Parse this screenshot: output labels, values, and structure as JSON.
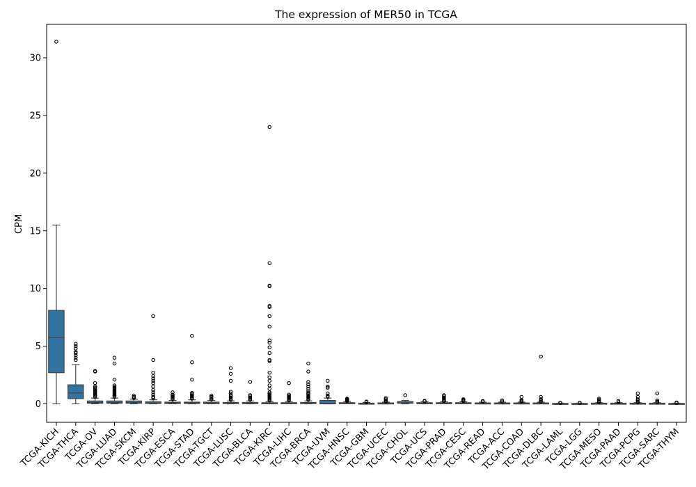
{
  "chart_data": {
    "type": "box",
    "title": "The expression of MER50 in TCGA",
    "xlabel": "",
    "ylabel": "CPM",
    "ylim": [
      -1.6,
      32.9
    ],
    "yticks": [
      0,
      5,
      10,
      15,
      20,
      25,
      30
    ],
    "box_color": "#3274a1",
    "categories": [
      "TCGA-KICH",
      "TCGA-THCA",
      "TCGA-OV",
      "TCGA-LUAD",
      "TCGA-SKCM",
      "TCGA-KIRP",
      "TCGA-ESCA",
      "TCGA-STAD",
      "TCGA-TGCT",
      "TCGA-LUSC",
      "TCGA-BLCA",
      "TCGA-KIRC",
      "TCGA-LIHC",
      "TCGA-BRCA",
      "TCGA-UVM",
      "TCGA-HNSC",
      "TCGA-GBM",
      "TCGA-UCEC",
      "TCGA-CHOL",
      "TCGA-UCS",
      "TCGA-PRAD",
      "TCGA-CESC",
      "TCGA-READ",
      "TCGA-ACC",
      "TCGA-COAD",
      "TCGA-DLBC",
      "TCGA-LAML",
      "TCGA-LGG",
      "TCGA-MESO",
      "TCGA-PAAD",
      "TCGA-PCPG",
      "TCGA-SARC",
      "TCGA-THYM"
    ],
    "boxes": [
      {
        "q1": 2.7,
        "median": 5.75,
        "q3": 8.1,
        "whisker_low": 0.0,
        "whisker_high": 15.5,
        "outliers": [
          31.4
        ]
      },
      {
        "q1": 0.45,
        "median": 0.95,
        "q3": 1.65,
        "whisker_low": 0.0,
        "whisker_high": 3.4,
        "outliers": [
          3.8,
          4.0,
          4.2,
          4.4,
          4.5,
          4.8,
          5.0,
          5.2
        ]
      },
      {
        "q1": 0.05,
        "median": 0.12,
        "q3": 0.25,
        "whisker_low": 0.0,
        "whisker_high": 0.5,
        "outliers": [
          0.6,
          0.7,
          0.8,
          0.9,
          1.0,
          1.1,
          1.2,
          1.3,
          1.4,
          1.5,
          1.8,
          2.8,
          2.85
        ]
      },
      {
        "q1": 0.05,
        "median": 0.12,
        "q3": 0.25,
        "whisker_low": 0.0,
        "whisker_high": 0.5,
        "outliers": [
          0.6,
          0.7,
          0.8,
          0.9,
          1.0,
          1.1,
          1.2,
          1.3,
          1.4,
          1.5,
          1.6,
          2.1,
          3.5,
          4.0
        ]
      },
      {
        "q1": 0.05,
        "median": 0.12,
        "q3": 0.25,
        "whisker_low": 0.0,
        "whisker_high": 0.4,
        "outliers": [
          0.5,
          0.6,
          0.7
        ]
      },
      {
        "q1": 0.03,
        "median": 0.08,
        "q3": 0.18,
        "whisker_low": 0.0,
        "whisker_high": 0.35,
        "outliers": [
          0.5,
          0.6,
          0.8,
          1.0,
          1.2,
          1.5,
          1.8,
          2.0,
          2.2,
          2.4,
          2.7,
          3.8,
          7.6
        ]
      },
      {
        "q1": 0.03,
        "median": 0.08,
        "q3": 0.15,
        "whisker_low": 0.0,
        "whisker_high": 0.3,
        "outliers": [
          0.4,
          0.5,
          0.6,
          0.7,
          0.8,
          1.0
        ]
      },
      {
        "q1": 0.03,
        "median": 0.08,
        "q3": 0.15,
        "whisker_low": 0.0,
        "whisker_high": 0.35,
        "outliers": [
          0.45,
          0.55,
          0.65,
          0.75,
          0.85,
          0.95,
          2.1,
          3.6,
          5.9
        ]
      },
      {
        "q1": 0.02,
        "median": 0.06,
        "q3": 0.15,
        "whisker_low": 0.0,
        "whisker_high": 0.3,
        "outliers": [
          0.4,
          0.5,
          0.6,
          0.7
        ]
      },
      {
        "q1": 0.02,
        "median": 0.05,
        "q3": 0.12,
        "whisker_low": 0.0,
        "whisker_high": 0.25,
        "outliers": [
          0.35,
          0.45,
          0.55,
          0.65,
          0.75,
          0.9,
          1.05,
          2.0,
          2.6,
          3.1
        ]
      },
      {
        "q1": 0.02,
        "median": 0.05,
        "q3": 0.12,
        "whisker_low": 0.0,
        "whisker_high": 0.25,
        "outliers": [
          0.35,
          0.45,
          0.55,
          0.65,
          0.75,
          1.9
        ]
      },
      {
        "q1": 0.02,
        "median": 0.05,
        "q3": 0.1,
        "whisker_low": 0.0,
        "whisker_high": 0.2,
        "outliers": [
          0.3,
          0.4,
          0.5,
          0.6,
          0.7,
          0.8,
          0.9,
          1.0,
          1.3,
          1.6,
          2.0,
          2.3,
          2.7,
          3.7,
          3.8,
          4.4,
          4.9,
          5.3,
          5.5,
          6.7,
          7.6,
          8.4,
          8.5,
          10.2,
          10.25,
          12.2,
          24.0
        ]
      },
      {
        "q1": 0.02,
        "median": 0.05,
        "q3": 0.1,
        "whisker_low": 0.0,
        "whisker_high": 0.2,
        "outliers": [
          0.3,
          0.4,
          0.5,
          0.6,
          0.7,
          0.8,
          1.8
        ]
      },
      {
        "q1": 0.02,
        "median": 0.05,
        "q3": 0.12,
        "whisker_low": 0.0,
        "whisker_high": 0.25,
        "outliers": [
          0.35,
          0.45,
          0.55,
          0.65,
          0.75,
          0.85,
          0.95,
          1.1,
          1.3,
          1.5,
          1.7,
          1.9,
          2.8,
          3.5
        ]
      },
      {
        "q1": 0.0,
        "median": 0.05,
        "q3": 0.3,
        "whisker_low": 0.0,
        "whisker_high": 0.5,
        "outliers": [
          0.6,
          0.7,
          0.9,
          1.4,
          1.5,
          2.0
        ]
      },
      {
        "q1": 0.02,
        "median": 0.05,
        "q3": 0.1,
        "whisker_low": 0.0,
        "whisker_high": 0.2,
        "outliers": [
          0.25,
          0.3,
          0.35,
          0.4,
          0.45
        ]
      },
      {
        "q1": 0.01,
        "median": 0.03,
        "q3": 0.06,
        "whisker_low": 0.0,
        "whisker_high": 0.12,
        "outliers": [
          0.15,
          0.2
        ]
      },
      {
        "q1": 0.01,
        "median": 0.04,
        "q3": 0.08,
        "whisker_low": 0.0,
        "whisker_high": 0.15,
        "outliers": [
          0.2,
          0.3,
          0.4,
          0.5
        ]
      },
      {
        "q1": 0.05,
        "median": 0.1,
        "q3": 0.2,
        "whisker_low": 0.0,
        "whisker_high": 0.3,
        "outliers": [
          0.75
        ]
      },
      {
        "q1": 0.02,
        "median": 0.05,
        "q3": 0.1,
        "whisker_low": 0.0,
        "whisker_high": 0.18,
        "outliers": [
          0.22,
          0.26
        ]
      },
      {
        "q1": 0.02,
        "median": 0.05,
        "q3": 0.1,
        "whisker_low": 0.0,
        "whisker_high": 0.18,
        "outliers": [
          0.25,
          0.35,
          0.45,
          0.55,
          0.65,
          0.75
        ]
      },
      {
        "q1": 0.02,
        "median": 0.05,
        "q3": 0.1,
        "whisker_low": 0.0,
        "whisker_high": 0.18,
        "outliers": [
          0.25,
          0.3,
          0.35,
          0.4
        ]
      },
      {
        "q1": 0.02,
        "median": 0.04,
        "q3": 0.08,
        "whisker_low": 0.0,
        "whisker_high": 0.15,
        "outliers": [
          0.2,
          0.25
        ]
      },
      {
        "q1": 0.02,
        "median": 0.04,
        "q3": 0.08,
        "whisker_low": 0.0,
        "whisker_high": 0.15,
        "outliers": [
          0.2,
          0.3
        ]
      },
      {
        "q1": 0.02,
        "median": 0.04,
        "q3": 0.08,
        "whisker_low": 0.0,
        "whisker_high": 0.15,
        "outliers": [
          0.2,
          0.25,
          0.35,
          0.6
        ]
      },
      {
        "q1": 0.02,
        "median": 0.04,
        "q3": 0.08,
        "whisker_low": 0.0,
        "whisker_high": 0.15,
        "outliers": [
          0.2,
          0.3,
          0.4,
          0.6,
          4.1
        ]
      },
      {
        "q1": 0.01,
        "median": 0.02,
        "q3": 0.04,
        "whisker_low": 0.0,
        "whisker_high": 0.06,
        "outliers": [
          0.08,
          0.1
        ]
      },
      {
        "q1": 0.01,
        "median": 0.02,
        "q3": 0.04,
        "whisker_low": 0.0,
        "whisker_high": 0.06,
        "outliers": [
          0.08,
          0.1
        ]
      },
      {
        "q1": 0.01,
        "median": 0.03,
        "q3": 0.06,
        "whisker_low": 0.0,
        "whisker_high": 0.1,
        "outliers": [
          0.15,
          0.25,
          0.35,
          0.45
        ]
      },
      {
        "q1": 0.01,
        "median": 0.03,
        "q3": 0.06,
        "whisker_low": 0.0,
        "whisker_high": 0.1,
        "outliers": [
          0.15,
          0.25
        ]
      },
      {
        "q1": 0.01,
        "median": 0.03,
        "q3": 0.06,
        "whisker_low": 0.0,
        "whisker_high": 0.1,
        "outliers": [
          0.15,
          0.2,
          0.3,
          0.4,
          0.6,
          0.9
        ]
      },
      {
        "q1": 0.01,
        "median": 0.03,
        "q3": 0.06,
        "whisker_low": 0.0,
        "whisker_high": 0.1,
        "outliers": [
          0.15,
          0.2,
          0.3,
          0.9
        ]
      },
      {
        "q1": 0.01,
        "median": 0.02,
        "q3": 0.04,
        "whisker_low": 0.0,
        "whisker_high": 0.06,
        "outliers": [
          0.08,
          0.1,
          0.12
        ]
      }
    ]
  }
}
